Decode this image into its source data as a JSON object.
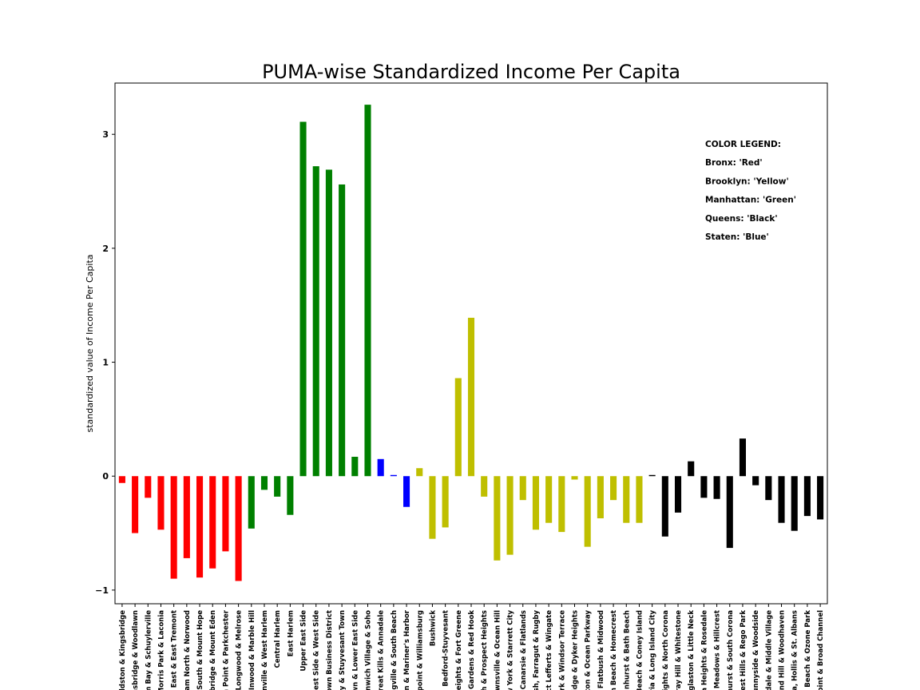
{
  "chart_data": {
    "type": "bar",
    "title": "PUMA-wise Standardized Income Per Capita",
    "xlabel": "",
    "ylabel": "standardized value of Income Per Capita",
    "ylim": [
      -1.12,
      3.45
    ],
    "yticks": [
      -1,
      0,
      1,
      2,
      3
    ],
    "ytick_labels": [
      "−1",
      "0",
      "1",
      "2",
      "3"
    ],
    "grid": false,
    "legend_position": "top-right",
    "legend_lines": [
      "COLOR LEGEND:",
      "Bronx: 'Red'",
      "Brooklyn: 'Yellow'",
      "Manhattan: 'Green'",
      "Queens: 'Black'",
      "Staten: 'Blue'"
    ],
    "colors": {
      "Bronx": "#ff0000",
      "Brooklyn": "#bfbf00",
      "Manhattan": "#008000",
      "Queens": "#000000",
      "Staten": "#0000ff"
    },
    "categories": [
      "eldston & Kingsbridge",
      "nsbridge & Woodlawn",
      "m Bay & Schuylerville",
      "Morris Park & Laconia",
      "k East & East Tremont",
      "ham North & Norwood",
      "n South & Mount Hope",
      "nbridge & Mount Eden",
      "n Point & Parkchester",
      ", Longwood & Melrose",
      ", Inwood & Marble Hill",
      "anville & West Harlem",
      "Central Harlem",
      "East Harlem",
      "Upper East Side",
      "West Side & West Side",
      "town Business District",
      "cy & Stuyvesant Town",
      "own & Lower East Side",
      "enwich Village & Soho",
      "Great Kills & Annadale",
      "ngville & South Beach",
      "on & Mariner's Harbor",
      "npoint & Williamsburg",
      "Bushwick",
      "Bedford-Stuyvesant",
      "Heights & Fort Greene",
      "ll Gardens & Red Hook",
      "th & Prospect Heights",
      "ownsville & Ocean Hill",
      "w York & Starrett City",
      "Canarsie & Flatlands",
      "sh, Farragut & Rugby",
      "ct Lefferts & Wingate",
      "ark & Windsor Terrace",
      "ridge & Dyker Heights",
      "gton & Ocean Parkway",
      "Flatbush & Midwood",
      "n Beach & Homecrest",
      "nhurst & Bath Beach",
      "Beach & Coney Island",
      "ria & Long Island City",
      "Heights & North Corona",
      "rray Hill & Whitestone",
      "uglaston & Little Neck",
      "a Heights & Rosedale",
      "h Meadows & Hillcrest",
      "nhurst & South Corona",
      "est Hills & Rego Park",
      "unnyside & Woodside",
      "dale & Middle Village",
      "nd Hill & Woodhaven",
      "a, Hollis & St. Albans",
      "d Beach & Ozone Park",
      "Point & Broad Channel"
    ],
    "values": [
      -0.06,
      -0.5,
      -0.19,
      -0.47,
      -0.9,
      -0.72,
      -0.89,
      -0.81,
      -0.66,
      -0.92,
      -0.46,
      -0.12,
      -0.18,
      -0.34,
      3.11,
      2.72,
      2.69,
      2.56,
      0.17,
      3.26,
      0.15,
      0.01,
      -0.27,
      0.07,
      -0.55,
      -0.45,
      0.86,
      1.39,
      -0.18,
      -0.74,
      -0.69,
      -0.21,
      -0.47,
      -0.41,
      -0.49,
      -0.03,
      -0.62,
      -0.37,
      -0.21,
      -0.41,
      -0.41,
      0.01,
      -0.53,
      -0.32,
      0.13,
      -0.19,
      -0.2,
      -0.63,
      0.33,
      -0.08,
      -0.21,
      -0.41,
      -0.48,
      -0.35,
      -0.38
    ],
    "boroughs": [
      "Bronx",
      "Bronx",
      "Bronx",
      "Bronx",
      "Bronx",
      "Bronx",
      "Bronx",
      "Bronx",
      "Bronx",
      "Bronx",
      "Manhattan",
      "Manhattan",
      "Manhattan",
      "Manhattan",
      "Manhattan",
      "Manhattan",
      "Manhattan",
      "Manhattan",
      "Manhattan",
      "Manhattan",
      "Staten",
      "Staten",
      "Staten",
      "Brooklyn",
      "Brooklyn",
      "Brooklyn",
      "Brooklyn",
      "Brooklyn",
      "Brooklyn",
      "Brooklyn",
      "Brooklyn",
      "Brooklyn",
      "Brooklyn",
      "Brooklyn",
      "Brooklyn",
      "Brooklyn",
      "Brooklyn",
      "Brooklyn",
      "Brooklyn",
      "Brooklyn",
      "Brooklyn",
      "Queens",
      "Queens",
      "Queens",
      "Queens",
      "Queens",
      "Queens",
      "Queens",
      "Queens",
      "Queens",
      "Queens",
      "Queens",
      "Queens",
      "Queens",
      "Queens"
    ]
  }
}
